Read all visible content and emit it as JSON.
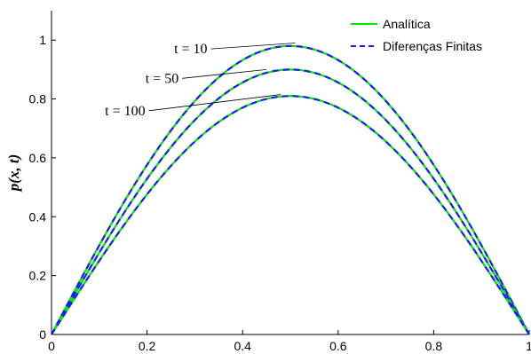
{
  "chart_data": {
    "type": "line",
    "xlabel": "",
    "ylabel": "p(x, t)",
    "xlim": [
      0,
      1
    ],
    "ylim": [
      0,
      1.1
    ],
    "x_ticks": [
      {
        "value": 0,
        "label": "0"
      },
      {
        "value": 0.2,
        "label": "0.2"
      },
      {
        "value": 0.4,
        "label": "0.4"
      },
      {
        "value": 0.6,
        "label": "0.6"
      },
      {
        "value": 0.8,
        "label": "0.8"
      },
      {
        "value": 1,
        "label": "1"
      }
    ],
    "y_ticks": [
      {
        "value": 0,
        "label": "0"
      },
      {
        "value": 0.2,
        "label": "0.2"
      },
      {
        "value": 0.4,
        "label": "0.4"
      },
      {
        "value": 0.6,
        "label": "0.6"
      },
      {
        "value": 0.8,
        "label": "0.8"
      },
      {
        "value": 1,
        "label": "1"
      }
    ],
    "grid": false,
    "legend_position": "top-right",
    "legend": [
      {
        "label": "Analítica",
        "style": "solid",
        "color": "#00e600"
      },
      {
        "label": "Diferenças Finitas",
        "style": "dashed",
        "color": "#1a1aff"
      }
    ],
    "curves": [
      {
        "t_label": "t = 10",
        "peak": 0.98,
        "annotation_anchor": [
          0.51,
          0.99
        ],
        "annotation_text_at": [
          0.33,
          0.955
        ]
      },
      {
        "t_label": "t = 50",
        "peak": 0.9,
        "annotation_anchor": [
          0.45,
          0.9
        ],
        "annotation_text_at": [
          0.27,
          0.855
        ]
      },
      {
        "t_label": "t = 100",
        "peak": 0.81,
        "annotation_anchor": [
          0.48,
          0.815
        ],
        "annotation_text_at": [
          0.2,
          0.745
        ]
      }
    ],
    "shape": "sin(pi x)",
    "colors": {
      "analytic": "#00e600",
      "finite_diff": "#1a1aff",
      "axis": "#000000"
    }
  }
}
